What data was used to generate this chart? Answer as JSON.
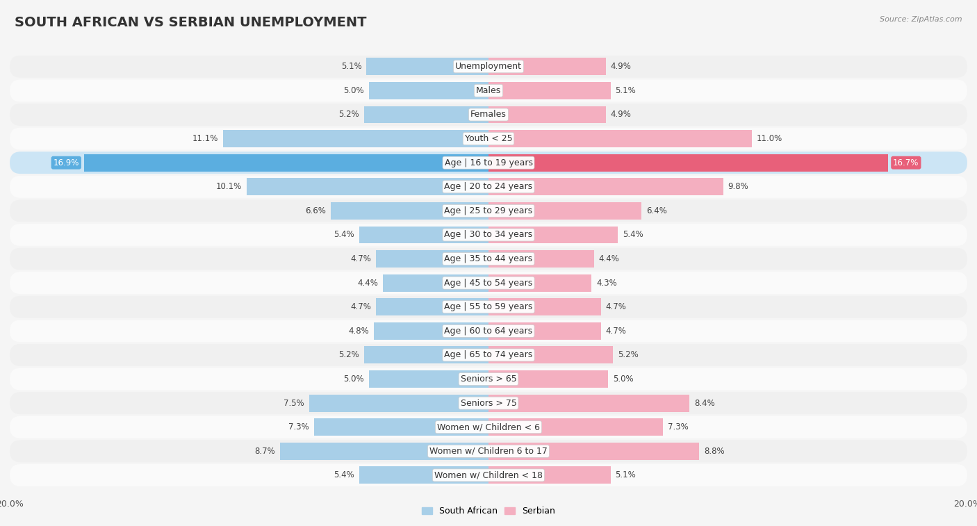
{
  "title": "SOUTH AFRICAN VS SERBIAN UNEMPLOYMENT",
  "source": "Source: ZipAtlas.com",
  "categories": [
    "Unemployment",
    "Males",
    "Females",
    "Youth < 25",
    "Age | 16 to 19 years",
    "Age | 20 to 24 years",
    "Age | 25 to 29 years",
    "Age | 30 to 34 years",
    "Age | 35 to 44 years",
    "Age | 45 to 54 years",
    "Age | 55 to 59 years",
    "Age | 60 to 64 years",
    "Age | 65 to 74 years",
    "Seniors > 65",
    "Seniors > 75",
    "Women w/ Children < 6",
    "Women w/ Children 6 to 17",
    "Women w/ Children < 18"
  ],
  "south_african": [
    5.1,
    5.0,
    5.2,
    11.1,
    16.9,
    10.1,
    6.6,
    5.4,
    4.7,
    4.4,
    4.7,
    4.8,
    5.2,
    5.0,
    7.5,
    7.3,
    8.7,
    5.4
  ],
  "serbian": [
    4.9,
    5.1,
    4.9,
    11.0,
    16.7,
    9.8,
    6.4,
    5.4,
    4.4,
    4.3,
    4.7,
    4.7,
    5.2,
    5.0,
    8.4,
    7.3,
    8.8,
    5.1
  ],
  "south_african_color": "#a8cfe8",
  "serbian_color": "#f4afc0",
  "highlight_sa_color": "#5baee0",
  "highlight_sr_color": "#e8607a",
  "x_max": 20.0,
  "row_colors": [
    "#f0f0f0",
    "#fafafa"
  ],
  "highlight_row_color": "#cce5f5",
  "background_color": "#f5f5f5",
  "title_fontsize": 14,
  "label_fontsize": 9,
  "value_fontsize": 8.5,
  "legend_fontsize": 9
}
